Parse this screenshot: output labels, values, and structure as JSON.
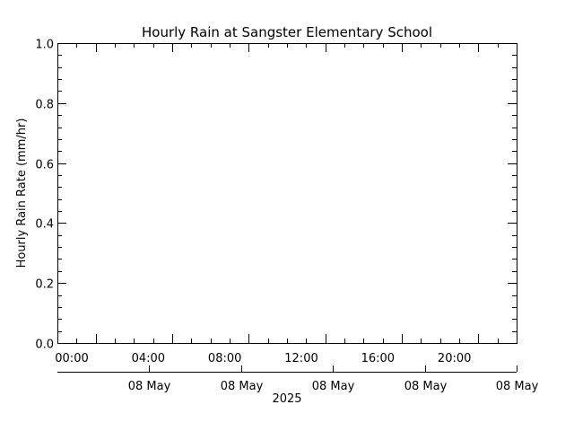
{
  "chart_data": {
    "type": "line",
    "title": "Hourly Rain at Sangster Elementary School",
    "ylabel": "Hourly Rain Rate (mm/hr)",
    "xlabel": "",
    "ylim": [
      0.0,
      1.0
    ],
    "yticks": [
      "0.0",
      "0.2",
      "0.4",
      "0.6",
      "0.8",
      "1.0"
    ],
    "xlim": [
      "00:00",
      "24:00"
    ],
    "time_ticks": [
      "00:00",
      "04:00",
      "08:00",
      "12:00",
      "16:00",
      "20:00"
    ],
    "date_ticks": [
      "08 May",
      "08 May",
      "08 May",
      "08 May",
      "08 May"
    ],
    "year_label": "2025",
    "series": [
      {
        "values": []
      }
    ],
    "grid": false,
    "colors": {
      "axes": "#000000",
      "background": "#ffffff"
    }
  }
}
